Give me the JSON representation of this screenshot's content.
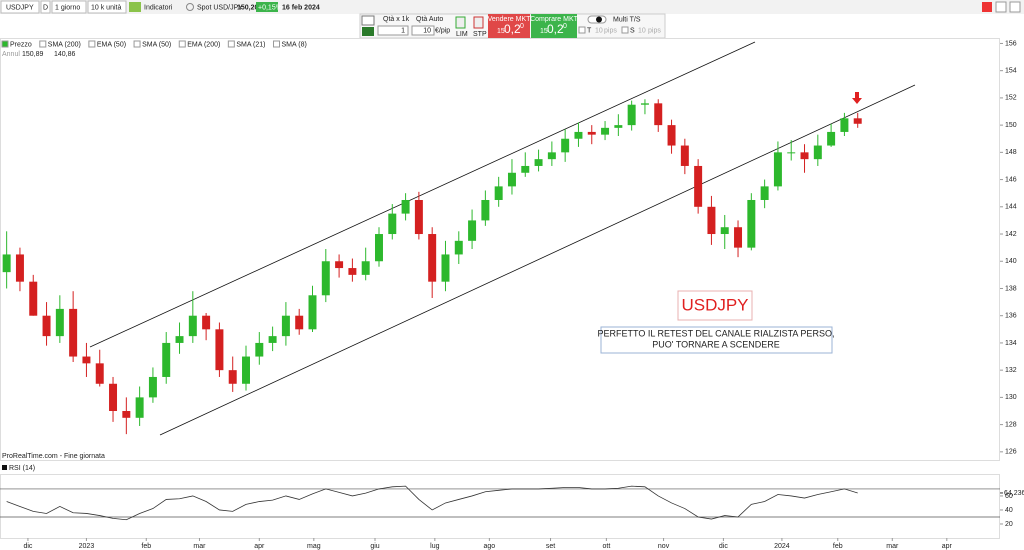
{
  "toolbar": {
    "symbol": "USDJPY",
    "period_code": "D",
    "timeframe": "1 giorno",
    "quantity": "10 k unità",
    "indicators": "Indicatori",
    "instrument": "Spot USD/JPY",
    "price": "150,20",
    "change": "+0,15%",
    "date": "16 feb 2024"
  },
  "order_panel": {
    "qty_label": "Qtà x 1k",
    "auto_label": "Qtà Auto",
    "qty": "1",
    "auto_qty": "10",
    "per_pip": "€/pip",
    "lim": "LIM",
    "stp": "STP",
    "sell": {
      "label": "Vendere MKT",
      "big": "15",
      "mid": "0,2",
      "sup": "0"
    },
    "buy": {
      "label": "Comprare MKT",
      "big": "15",
      "mid": "0,2",
      "sup": "0"
    },
    "multi": "Multi T/S",
    "t": "T",
    "t_val": "10",
    "t_unit": "pips",
    "s": "S",
    "s_val": "10",
    "s_unit": "pips"
  },
  "legend": {
    "items": [
      "Prezzo",
      "SMA (200)",
      "EMA (50)",
      "SMA (50)",
      "EMA (200)",
      "SMA (21)",
      "SMA (8)"
    ],
    "mode": "Annul",
    "high": "150,89",
    "low": "140,86"
  },
  "annotations": {
    "box_title": "USDJPY",
    "note": [
      "PERFETTO IL RETEST DEL CANALE RIALZISTA PERSO,",
      "PUO' TORNARE A SCENDERE"
    ]
  },
  "source": "ProRealTime.com - Fine giornata",
  "chart_data": [
    {
      "type": "candlestick",
      "up_color": "#2db82d",
      "down_color": "#d42020",
      "x": [
        0,
        1,
        2,
        3,
        4,
        5,
        6,
        7,
        8,
        9,
        10,
        11,
        12,
        13,
        14,
        15,
        16,
        17,
        18,
        19,
        20,
        21,
        22,
        23,
        24,
        25,
        26,
        27,
        28,
        29,
        30,
        31,
        32,
        33,
        34,
        35,
        36,
        37,
        38,
        39,
        40,
        41,
        42,
        43,
        44,
        45,
        46,
        47,
        48,
        49,
        50,
        51,
        52,
        53,
        54,
        55,
        56,
        57,
        58,
        59,
        60,
        61,
        62,
        63,
        64
      ],
      "open": [
        139.2,
        140.5,
        138.5,
        136,
        134.5,
        136.5,
        133,
        132.5,
        131,
        129,
        128.5,
        130,
        131.5,
        134,
        134.5,
        136,
        135,
        132,
        131,
        133,
        134,
        134.5,
        136,
        135,
        137.5,
        140,
        139.5,
        139,
        140,
        142,
        143.5,
        144.5,
        142,
        138.5,
        140.5,
        141.5,
        143,
        144.5,
        145.5,
        146.5,
        147,
        147.5,
        148,
        149,
        149.5,
        149.3,
        149.8,
        150,
        151.5,
        151.6,
        150,
        148.5,
        147,
        144,
        142,
        142.5,
        141,
        144.5,
        145.5,
        148,
        148,
        147.5,
        148.5,
        149.5,
        150.5
      ],
      "high": [
        142.2,
        141,
        139,
        137,
        137.5,
        137.8,
        134,
        133.5,
        131.5,
        130,
        130.8,
        132.2,
        134.8,
        135.5,
        137.8,
        136.2,
        135.5,
        133,
        133.8,
        134.8,
        135.2,
        137,
        136.5,
        138.2,
        140.9,
        140.5,
        140.2,
        141,
        142.5,
        144.2,
        145,
        145.1,
        142.5,
        141.5,
        142.2,
        143.8,
        145.2,
        146.2,
        147.5,
        148,
        148.2,
        148.8,
        149.7,
        150.2,
        150,
        150.3,
        150.8,
        151.8,
        151.9,
        151.9,
        150.4,
        149,
        147.5,
        144.8,
        143.4,
        143,
        145,
        146,
        148.8,
        148.9,
        148.6,
        149.3,
        150.1,
        150.9,
        150.9
      ],
      "low": [
        138,
        137.8,
        136,
        133.8,
        134,
        132.6,
        131.5,
        130.8,
        128.2,
        127.3,
        127.9,
        129.6,
        131,
        133.2,
        134,
        134.2,
        131.5,
        130.4,
        130.5,
        132.4,
        133.4,
        133.8,
        134.6,
        134.8,
        137,
        138.8,
        138.5,
        138.6,
        139.6,
        141.6,
        143,
        141.6,
        137.3,
        137.8,
        139.8,
        140.9,
        142.6,
        144,
        144.9,
        146.2,
        146.6,
        147,
        147.3,
        148.4,
        148.6,
        148.9,
        149.2,
        149.6,
        150.8,
        149.5,
        147.9,
        146.4,
        143.5,
        141.2,
        140.9,
        140.3,
        140.8,
        143.9,
        145.2,
        147.4,
        146.5,
        147,
        148.4,
        149.2,
        149.8
      ],
      "close": [
        140.5,
        138.5,
        136,
        134.5,
        136.5,
        133,
        132.5,
        131,
        129,
        128.5,
        130,
        131.5,
        134,
        134.5,
        136,
        135,
        132,
        131,
        133,
        134,
        134.5,
        136,
        135,
        137.5,
        140,
        139.5,
        139,
        140,
        142,
        143.5,
        144.5,
        142,
        138.5,
        140.5,
        141.5,
        143,
        144.5,
        145.5,
        146.5,
        147,
        147.5,
        148,
        149,
        149.5,
        149.3,
        149.8,
        150,
        151.5,
        151.6,
        150,
        148.5,
        147,
        144,
        142,
        142.5,
        141,
        144.5,
        145.5,
        148,
        148,
        147.5,
        148.5,
        149.5,
        150.5,
        150.1
      ],
      "xlim": [
        -0.5,
        74.7
      ],
      "ylim": [
        125.4,
        156.4
      ],
      "yticks": [
        126,
        128,
        130,
        132,
        134,
        136,
        138,
        140,
        142,
        144,
        146,
        148,
        150,
        152,
        154,
        156
      ],
      "xticks": [
        {
          "value": 1.6,
          "label": "dic"
        },
        {
          "value": 6,
          "label": "2023"
        },
        {
          "value": 10.5,
          "label": "feb"
        },
        {
          "value": 14.5,
          "label": "mar"
        },
        {
          "value": 19,
          "label": "apr"
        },
        {
          "value": 23.1,
          "label": "mag"
        },
        {
          "value": 27.7,
          "label": "giu"
        },
        {
          "value": 32.2,
          "label": "lug"
        },
        {
          "value": 36.3,
          "label": "ago"
        },
        {
          "value": 40.9,
          "label": "set"
        },
        {
          "value": 45.1,
          "label": "ott"
        },
        {
          "value": 49.4,
          "label": "nov"
        },
        {
          "value": 53.9,
          "label": "dic"
        },
        {
          "value": 58.3,
          "label": "2024"
        },
        {
          "value": 62.5,
          "label": "feb"
        },
        {
          "value": 66.6,
          "label": "mar"
        },
        {
          "value": 70.7,
          "label": "apr"
        }
      ]
    },
    {
      "type": "line",
      "series": [
        {
          "name": "RSI (14)",
          "color": "#333333",
          "values": [
            52,
            45,
            38,
            35,
            45,
            36,
            35,
            32,
            28,
            26,
            35,
            42,
            55,
            56,
            60,
            52,
            40,
            38,
            48,
            52,
            54,
            60,
            55,
            63,
            70,
            65,
            60,
            64,
            70,
            73,
            74,
            55,
            40,
            50,
            55,
            60,
            66,
            68,
            70,
            70,
            70,
            71,
            72,
            72,
            70,
            70,
            71,
            74,
            73,
            60,
            50,
            42,
            30,
            27,
            32,
            30,
            48,
            52,
            62,
            60,
            57,
            62,
            66,
            70,
            64.236
          ]
        }
      ],
      "ylim": [
        0,
        87
      ],
      "yticks": [
        20,
        40,
        60
      ],
      "levels": [
        70,
        30
      ],
      "current": {
        "value": 64.236,
        "label": "64,236"
      }
    }
  ]
}
